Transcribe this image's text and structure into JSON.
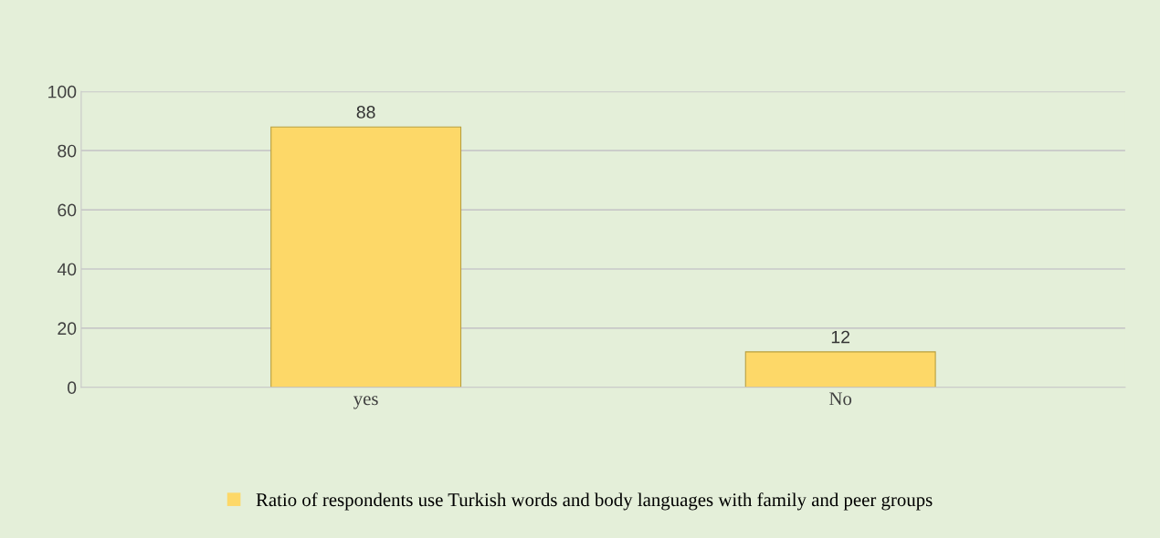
{
  "chart_data": {
    "type": "bar",
    "categories": [
      "yes",
      "No"
    ],
    "series": [
      {
        "name": "Ratio of respondents use Turkish words and body languages with family and peer groups",
        "color": "#fdd868",
        "values": [
          88,
          12
        ]
      }
    ],
    "ylim": [
      0,
      100
    ],
    "yticks": [
      0,
      20,
      40,
      60,
      80,
      100
    ],
    "grid": "y",
    "legend": "bottom",
    "data_labels": true
  }
}
